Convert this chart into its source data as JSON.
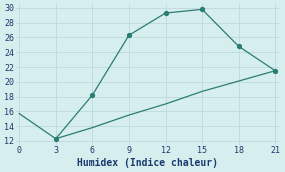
{
  "upper_x": [
    0,
    3,
    6,
    9,
    12,
    15,
    18,
    21
  ],
  "upper_y": [
    15.7,
    12.3,
    18.2,
    26.3,
    29.3,
    29.8,
    24.8,
    21.5
  ],
  "lower_x": [
    3,
    6,
    9,
    12,
    15,
    18,
    21
  ],
  "lower_y": [
    12.3,
    13.8,
    15.5,
    17.0,
    18.7,
    20.1,
    21.5
  ],
  "line_color": "#2a7d72",
  "bg_color": "#d6eeee",
  "grid_color": "#c0dcdc",
  "xlabel": "Humidex (Indice chaleur)",
  "xlim": [
    -0.3,
    21.3
  ],
  "ylim": [
    11.5,
    30.5
  ],
  "xticks": [
    0,
    3,
    6,
    9,
    12,
    15,
    18,
    21
  ],
  "yticks": [
    12,
    14,
    16,
    18,
    20,
    22,
    24,
    26,
    28,
    30
  ],
  "label_fontsize": 7,
  "tick_fontsize": 6
}
